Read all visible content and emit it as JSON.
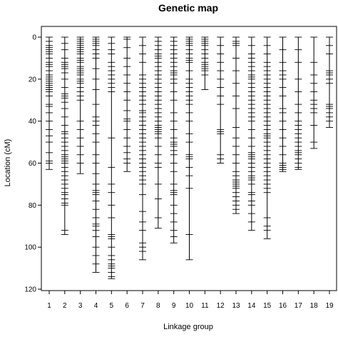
{
  "chart_data": {
    "type": "genetic-map",
    "title": "Genetic map",
    "xlabel": "Linkage group",
    "ylabel": "Location (cM)",
    "y_axis_inverted": true,
    "ylim": [
      0,
      120
    ],
    "yticks": [
      0,
      20,
      40,
      60,
      80,
      100,
      120
    ],
    "grid": false,
    "legend": "none",
    "groups": [
      {
        "label": "1",
        "length": 63,
        "markers": [
          0,
          2,
          4,
          5,
          6,
          7,
          8,
          10,
          12,
          13,
          14,
          16,
          18,
          19,
          20,
          21,
          22,
          23,
          24,
          25,
          26,
          28,
          32,
          33,
          36,
          40,
          44,
          47,
          50,
          55,
          59,
          60,
          63
        ]
      },
      {
        "label": "2",
        "length": 94,
        "markers": [
          0,
          3,
          6,
          10,
          12,
          13,
          14,
          15,
          17,
          20,
          24,
          27,
          28,
          29,
          31,
          34,
          38,
          42,
          45,
          46,
          48,
          50,
          52,
          54,
          56,
          57,
          58,
          59,
          60,
          62,
          64,
          66,
          68,
          70,
          72,
          74,
          75,
          77,
          79,
          80,
          92,
          94
        ]
      },
      {
        "label": "3",
        "length": 65,
        "markers": [
          0,
          1,
          2,
          3,
          4,
          5,
          6,
          7,
          8,
          10,
          11,
          12,
          14,
          15,
          16,
          17,
          18,
          20,
          21,
          22,
          24,
          26,
          28,
          30,
          40,
          44,
          48,
          52,
          56,
          60,
          65
        ]
      },
      {
        "label": "4",
        "length": 112,
        "markers": [
          0,
          1,
          2,
          3,
          4,
          6,
          8,
          10,
          15,
          20,
          25,
          32,
          38,
          40,
          42,
          46,
          50,
          56,
          60,
          65,
          70,
          73,
          74,
          75,
          78,
          82,
          86,
          89,
          90,
          92,
          95,
          100,
          104,
          108,
          112
        ]
      },
      {
        "label": "5",
        "length": 115,
        "markers": [
          0,
          3,
          6,
          8,
          12,
          14,
          16,
          18,
          20,
          22,
          24,
          26,
          48,
          62,
          70,
          74,
          80,
          86,
          94,
          95,
          96,
          100,
          104,
          106,
          108,
          109,
          110,
          112,
          114,
          115
        ]
      },
      {
        "label": "6",
        "length": 64,
        "markers": [
          0,
          1,
          5,
          10,
          14,
          18,
          22,
          26,
          30,
          35,
          39,
          40,
          44,
          48,
          52,
          55,
          58,
          60,
          64
        ]
      },
      {
        "label": "7",
        "length": 106,
        "markers": [
          0,
          4,
          8,
          12,
          18,
          20,
          22,
          24,
          26,
          28,
          30,
          32,
          35,
          36,
          38,
          40,
          42,
          44,
          46,
          48,
          50,
          52,
          54,
          56,
          58,
          60,
          62,
          64,
          66,
          68,
          70,
          75,
          83,
          88,
          92,
          98,
          100,
          102,
          106
        ]
      },
      {
        "label": "8",
        "length": 91,
        "markers": [
          0,
          2,
          4,
          6,
          8,
          9,
          10,
          12,
          14,
          16,
          18,
          20,
          22,
          24,
          26,
          28,
          30,
          32,
          34,
          36,
          38,
          40,
          42,
          43,
          44,
          45,
          46,
          48,
          52,
          56,
          60,
          62,
          70,
          77,
          86,
          91
        ]
      },
      {
        "label": "9",
        "length": 98,
        "markers": [
          0,
          2,
          4,
          6,
          8,
          10,
          12,
          14,
          16,
          17,
          18,
          20,
          22,
          26,
          30,
          36,
          40,
          44,
          48,
          50,
          51,
          52,
          54,
          56,
          60,
          64,
          70,
          73,
          74,
          75,
          80,
          84,
          88,
          92,
          95,
          98
        ]
      },
      {
        "label": "10",
        "length": 106,
        "markers": [
          0,
          1,
          2,
          3,
          4,
          6,
          8,
          10,
          11,
          12,
          16,
          20,
          22,
          24,
          26,
          28,
          30,
          32,
          36,
          40,
          46,
          50,
          56,
          57,
          58,
          62,
          66,
          72,
          94,
          106
        ]
      },
      {
        "label": "11",
        "length": 25,
        "markers": [
          0,
          1,
          2,
          3,
          4,
          6,
          8,
          10,
          12,
          13,
          14,
          15,
          16,
          18,
          25
        ]
      },
      {
        "label": "12",
        "length": 60,
        "markers": [
          0,
          4,
          8,
          12,
          16,
          20,
          24,
          28,
          32,
          44,
          45,
          46,
          56,
          58,
          60
        ]
      },
      {
        "label": "13",
        "length": 84,
        "markers": [
          0,
          2,
          3,
          4,
          10,
          16,
          22,
          28,
          34,
          43,
          48,
          52,
          56,
          60,
          64,
          66,
          68,
          69,
          70,
          71,
          72,
          74,
          76,
          78,
          80,
          82,
          84
        ]
      },
      {
        "label": "14",
        "length": 92,
        "markers": [
          0,
          4,
          8,
          10,
          12,
          14,
          16,
          18,
          19,
          20,
          22,
          24,
          26,
          28,
          30,
          32,
          34,
          36,
          38,
          40,
          44,
          48,
          52,
          55,
          56,
          57,
          58,
          60,
          62,
          64,
          66,
          67,
          68,
          70,
          74,
          75,
          78,
          80,
          84,
          88,
          92
        ]
      },
      {
        "label": "15",
        "length": 96,
        "markers": [
          0,
          4,
          8,
          12,
          14,
          16,
          18,
          20,
          22,
          24,
          26,
          28,
          30,
          32,
          34,
          36,
          38,
          40,
          42,
          44,
          46,
          47,
          48,
          50,
          52,
          54,
          56,
          58,
          60,
          62,
          64,
          66,
          68,
          70,
          72,
          74,
          86,
          90,
          92,
          96
        ]
      },
      {
        "label": "16",
        "length": 64,
        "markers": [
          0,
          6,
          12,
          16,
          18,
          20,
          24,
          28,
          34,
          36,
          40,
          44,
          48,
          52,
          56,
          60,
          61,
          62,
          63,
          64
        ]
      },
      {
        "label": "17",
        "length": 63,
        "markers": [
          0,
          6,
          12,
          20,
          26,
          32,
          36,
          40,
          42,
          44,
          46,
          48,
          50,
          52,
          54,
          55,
          56,
          58,
          60,
          62,
          63
        ]
      },
      {
        "label": "18",
        "length": 53,
        "markers": [
          0,
          12,
          18,
          22,
          26,
          30,
          32,
          34,
          36,
          42,
          50,
          53
        ]
      },
      {
        "label": "19",
        "length": 43,
        "markers": [
          0,
          4,
          8,
          16,
          17,
          18,
          20,
          22,
          32,
          33,
          34,
          36,
          38,
          40,
          43
        ]
      }
    ]
  }
}
